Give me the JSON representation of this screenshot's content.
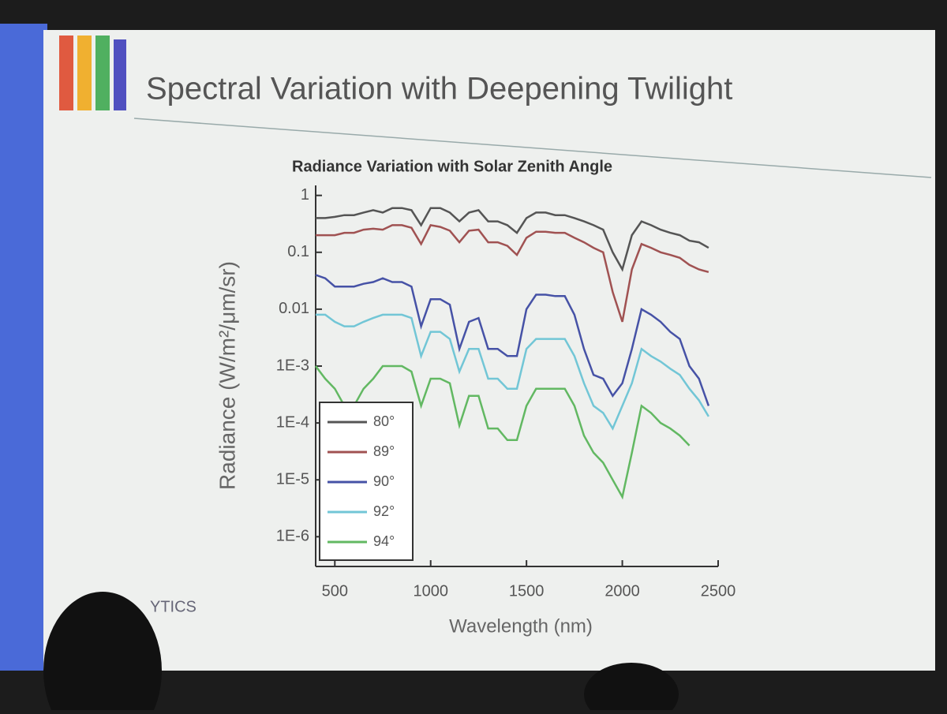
{
  "slide_title": "Spectral Variation with Deepening Twilight",
  "logo_text": "YTICS",
  "chart_data": {
    "type": "line",
    "title": "Radiance Variation with Solar Zenith Angle",
    "x_label": "Wavelength (nm)",
    "y_label": "Radiance (W/m²/μm/sr)",
    "log_y": true,
    "legend": "bottom-left",
    "xlim": [
      400,
      2500
    ],
    "xticks": [
      500,
      1000,
      1500,
      2000,
      2500
    ],
    "ylim": [
      3e-07,
      1.5
    ],
    "yticks": [
      1,
      0.1,
      0.01,
      {
        "value": 0.001,
        "label": "1E-3"
      },
      {
        "value": 0.0001,
        "label": "1E-4"
      },
      {
        "value": 1e-05,
        "label": "1E-5"
      },
      {
        "value": 1e-06,
        "label": "1E-6"
      }
    ],
    "x": [
      400,
      450,
      500,
      550,
      600,
      650,
      700,
      750,
      800,
      850,
      900,
      950,
      1000,
      1050,
      1100,
      1150,
      1200,
      1250,
      1300,
      1350,
      1400,
      1450,
      1500,
      1550,
      1600,
      1650,
      1700,
      1750,
      1800,
      1850,
      1900,
      1950,
      2000,
      2050,
      2100,
      2150,
      2200,
      2250,
      2300,
      2350,
      2400,
      2450
    ],
    "series": [
      {
        "name": "80°",
        "color": "#555555",
        "values": [
          0.4,
          0.4,
          0.42,
          0.45,
          0.45,
          0.5,
          0.55,
          0.5,
          0.6,
          0.6,
          0.55,
          0.3,
          0.6,
          0.6,
          0.5,
          0.35,
          0.5,
          0.55,
          0.35,
          0.35,
          0.3,
          0.22,
          0.4,
          0.5,
          0.5,
          0.45,
          0.45,
          0.4,
          0.35,
          0.3,
          0.25,
          0.1,
          0.05,
          0.2,
          0.35,
          0.3,
          0.25,
          0.22,
          0.2,
          0.16,
          0.15,
          0.12
        ]
      },
      {
        "name": "89°",
        "color": "#a05252",
        "values": [
          0.2,
          0.2,
          0.2,
          0.22,
          0.22,
          0.25,
          0.26,
          0.25,
          0.3,
          0.3,
          0.27,
          0.14,
          0.3,
          0.28,
          0.24,
          0.15,
          0.24,
          0.25,
          0.15,
          0.15,
          0.13,
          0.09,
          0.18,
          0.23,
          0.23,
          0.22,
          0.22,
          0.18,
          0.15,
          0.12,
          0.1,
          0.02,
          0.006,
          0.05,
          0.14,
          0.12,
          0.1,
          0.09,
          0.08,
          0.06,
          0.05,
          0.045
        ]
      },
      {
        "name": "90°",
        "color": "#4652a6",
        "values": [
          0.04,
          0.035,
          0.025,
          0.025,
          0.025,
          0.028,
          0.03,
          0.035,
          0.03,
          0.03,
          0.025,
          0.005,
          0.015,
          0.015,
          0.012,
          0.002,
          0.006,
          0.007,
          0.002,
          0.002,
          0.0015,
          0.0015,
          0.01,
          0.018,
          0.018,
          0.017,
          0.017,
          0.008,
          0.002,
          0.0007,
          0.0006,
          0.0003,
          0.0005,
          0.002,
          0.01,
          0.008,
          0.006,
          0.004,
          0.003,
          0.001,
          0.0006,
          0.0002
        ]
      },
      {
        "name": "92°",
        "color": "#72c6d6",
        "values": [
          0.008,
          0.008,
          0.006,
          0.005,
          0.005,
          0.006,
          0.007,
          0.008,
          0.008,
          0.008,
          0.007,
          0.0015,
          0.004,
          0.004,
          0.003,
          0.0008,
          0.002,
          0.002,
          0.0006,
          0.0006,
          0.0004,
          0.0004,
          0.002,
          0.003,
          0.003,
          0.003,
          0.003,
          0.0015,
          0.0005,
          0.0002,
          0.00015,
          8e-05,
          0.0002,
          0.0005,
          0.002,
          0.0015,
          0.0012,
          0.0009,
          0.0007,
          0.0004,
          0.00025,
          0.00013
        ]
      },
      {
        "name": "94°",
        "color": "#62b862",
        "values": [
          0.001,
          0.0006,
          0.0004,
          0.0002,
          0.0002,
          0.0004,
          0.0006,
          0.001,
          0.001,
          0.001,
          0.0008,
          0.0002,
          0.0006,
          0.0006,
          0.0005,
          9e-05,
          0.0003,
          0.0003,
          8e-05,
          8e-05,
          5e-05,
          5e-05,
          0.0002,
          0.0004,
          0.0004,
          0.0004,
          0.0004,
          0.0002,
          6e-05,
          3e-05,
          2e-05,
          1e-05,
          5e-06,
          3e-05,
          0.0002,
          0.00015,
          0.0001,
          8e-05,
          6e-05,
          4e-05,
          null,
          null
        ]
      }
    ]
  }
}
